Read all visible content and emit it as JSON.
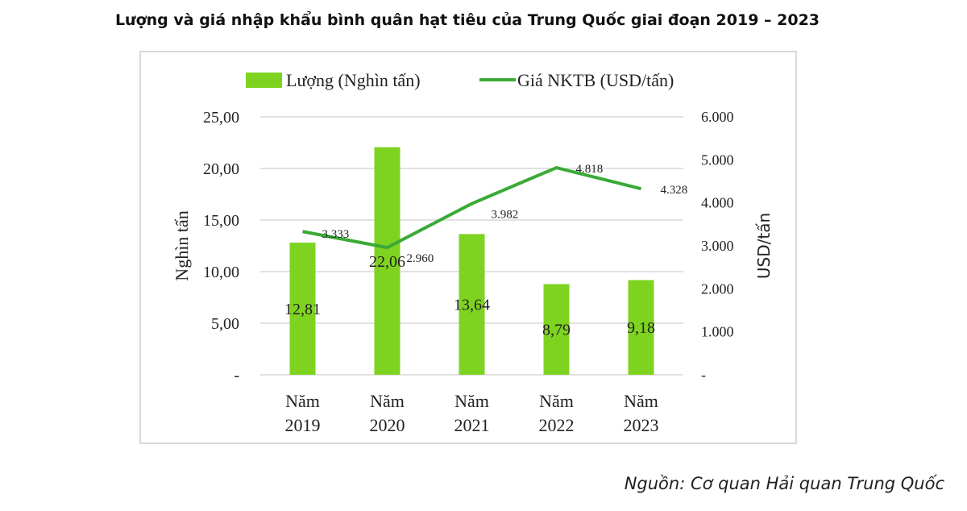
{
  "title": "Lượng và giá nhập khẩu bình quân hạt tiêu của Trung Quốc giai đoạn 2019 – 2023",
  "source": "Nguồn: Cơ quan Hải quan Trung Quốc",
  "chart_data": {
    "type": "bar+line",
    "categories": [
      [
        "Năm",
        "2019"
      ],
      [
        "Năm",
        "2020"
      ],
      [
        "Năm",
        "2021"
      ],
      [
        "Năm",
        "2022"
      ],
      [
        "Năm",
        "2023"
      ]
    ],
    "series": [
      {
        "name": "Lượng (Nghìn tấn)",
        "type": "bar",
        "axis": "left",
        "color": "#7ed321",
        "values": [
          12.81,
          22.06,
          13.64,
          8.79,
          9.18
        ],
        "labels": [
          "12,81",
          "22,06",
          "13,64",
          "8,79",
          "9,18"
        ]
      },
      {
        "name": "Giá NKTB (USD/tấn)",
        "type": "line",
        "axis": "right",
        "color": "#3aaa35",
        "values": [
          3333,
          2960,
          3982,
          4818,
          4328
        ],
        "labels": [
          "3.333",
          "2.960",
          "3.982",
          "4.818",
          "4.328"
        ]
      }
    ],
    "ylabel": "Nghìn tấn",
    "y2label": "USD/tấn",
    "ylim": [
      0,
      25
    ],
    "y2lim": [
      0,
      6000
    ],
    "yticks": [
      "-",
      "5,00",
      "10,00",
      "15,00",
      "20,00",
      "25,00"
    ],
    "y2ticks": [
      "-",
      "1.000",
      "2.000",
      "3.000",
      "4.000",
      "5.000",
      "6.000"
    ],
    "grid": true,
    "legend": "top"
  }
}
